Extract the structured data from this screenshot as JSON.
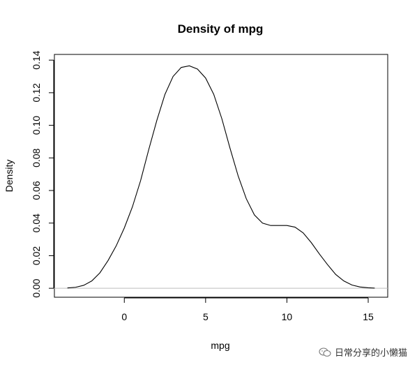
{
  "chart_data": {
    "type": "line",
    "title": "Density of mpg",
    "xlabel": "mpg",
    "ylabel": "Density",
    "xlim": [
      -4.3,
      16.2
    ],
    "ylim": [
      -0.0055,
      0.1435
    ],
    "x_ticks": [
      0,
      5,
      10,
      15
    ],
    "x_tick_labels": [
      "0",
      "5",
      "10",
      "15"
    ],
    "y_ticks": [
      0.0,
      0.02,
      0.04,
      0.06,
      0.08,
      0.1,
      0.12,
      0.14
    ],
    "y_tick_labels": [
      "0.00",
      "0.02",
      "0.04",
      "0.06",
      "0.08",
      "0.10",
      "0.12",
      "0.14"
    ],
    "grid": false,
    "baseline": {
      "y": 0,
      "color": "#bebebe"
    },
    "series": [
      {
        "color": "#000000",
        "x": [
          -3.5,
          -3.0,
          -2.5,
          -2.0,
          -1.5,
          -1.0,
          -0.5,
          0.0,
          0.5,
          1.0,
          1.5,
          2.0,
          2.5,
          3.0,
          3.5,
          4.0,
          4.5,
          5.0,
          5.5,
          6.0,
          6.5,
          7.0,
          7.5,
          8.0,
          8.5,
          9.0,
          9.5,
          10.0,
          10.5,
          11.0,
          11.5,
          12.0,
          12.5,
          13.0,
          13.5,
          14.0,
          14.5,
          15.0,
          15.4
        ],
        "y": [
          0.0002,
          0.0006,
          0.0018,
          0.0045,
          0.0095,
          0.017,
          0.026,
          0.037,
          0.05,
          0.066,
          0.085,
          0.103,
          0.119,
          0.13,
          0.1355,
          0.1365,
          0.1345,
          0.129,
          0.119,
          0.104,
          0.086,
          0.069,
          0.055,
          0.045,
          0.04,
          0.0385,
          0.0385,
          0.0385,
          0.0375,
          0.034,
          0.028,
          0.021,
          0.0145,
          0.0085,
          0.0045,
          0.002,
          0.0008,
          0.0003,
          0.0001
        ]
      }
    ]
  },
  "watermark": {
    "text": "日常分享的小懒猫",
    "icon": "wechat-icon"
  }
}
